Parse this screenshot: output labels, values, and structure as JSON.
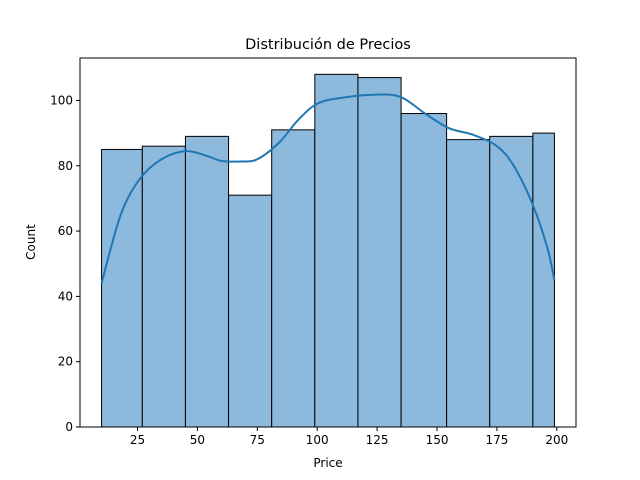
{
  "chart_data": {
    "type": "bar",
    "title": "Distribución de Precios",
    "xlabel": "Price",
    "ylabel": "Count",
    "xlim": [
      1,
      208
    ],
    "ylim": [
      0,
      113
    ],
    "bins": [
      {
        "x0": 10,
        "x1": 27,
        "count": 85
      },
      {
        "x0": 27,
        "x1": 45,
        "count": 86
      },
      {
        "x0": 45,
        "x1": 63,
        "count": 89
      },
      {
        "x0": 63,
        "x1": 81,
        "count": 71
      },
      {
        "x0": 81,
        "x1": 99,
        "count": 91
      },
      {
        "x0": 99,
        "x1": 117,
        "count": 108
      },
      {
        "x0": 117,
        "x1": 135,
        "count": 107
      },
      {
        "x0": 135,
        "x1": 154,
        "count": 96
      },
      {
        "x0": 154,
        "x1": 172,
        "count": 88
      },
      {
        "x0": 172,
        "x1": 190,
        "count": 89
      },
      {
        "x0": 190,
        "x1": 199,
        "count": 90
      }
    ],
    "kde": [
      {
        "x": 10,
        "y": 44
      },
      {
        "x": 18,
        "y": 65
      },
      {
        "x": 26,
        "y": 76
      },
      {
        "x": 35,
        "y": 82
      },
      {
        "x": 45,
        "y": 84.5
      },
      {
        "x": 54,
        "y": 83
      },
      {
        "x": 60,
        "y": 81.5
      },
      {
        "x": 68,
        "y": 81.3
      },
      {
        "x": 75,
        "y": 82
      },
      {
        "x": 84,
        "y": 87
      },
      {
        "x": 92,
        "y": 94
      },
      {
        "x": 100,
        "y": 99
      },
      {
        "x": 110,
        "y": 100.8
      },
      {
        "x": 125,
        "y": 101.8
      },
      {
        "x": 135,
        "y": 101
      },
      {
        "x": 145,
        "y": 96
      },
      {
        "x": 155,
        "y": 91.5
      },
      {
        "x": 165,
        "y": 89.5
      },
      {
        "x": 175,
        "y": 86
      },
      {
        "x": 182,
        "y": 80
      },
      {
        "x": 190,
        "y": 68
      },
      {
        "x": 196,
        "y": 55
      },
      {
        "x": 199,
        "y": 45
      }
    ],
    "x_ticks": [
      25,
      50,
      75,
      100,
      125,
      150,
      175,
      200
    ],
    "y_ticks": [
      0,
      20,
      40,
      60,
      80,
      100
    ],
    "bar_color": "#8db9dc",
    "line_color": "#1f77b4",
    "grid": false,
    "legend": "none"
  }
}
